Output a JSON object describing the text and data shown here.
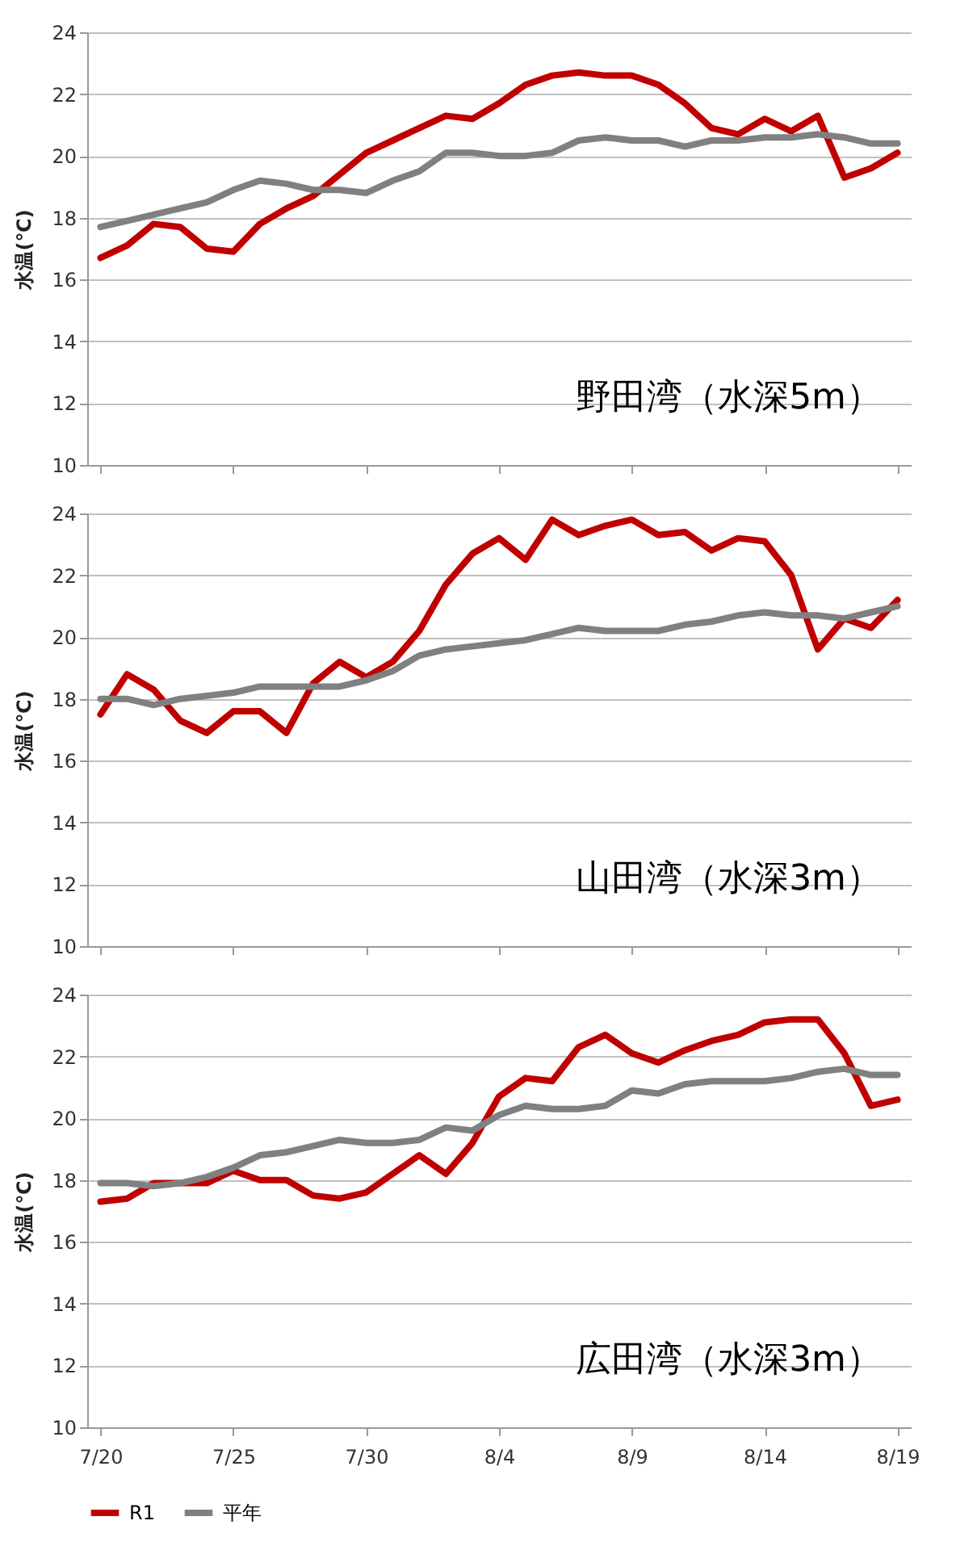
{
  "chart_data": [
    {
      "type": "line",
      "ylabel": "水温(℃)",
      "annotations": [
        "野田湾（水深5m）"
      ],
      "tick_labels": "y",
      "grid": "y",
      "legend": "bottom",
      "categories": [
        null,
        null,
        null,
        null,
        null,
        null,
        null,
        null,
        null,
        null,
        null,
        null,
        null,
        null,
        null,
        null,
        null,
        null,
        null,
        null,
        null,
        null,
        null,
        null,
        null,
        null,
        null,
        null,
        null,
        null,
        null
      ],
      "ylim": [
        10,
        24
      ],
      "yticks": [
        10,
        12,
        14,
        16,
        18,
        20,
        22,
        24
      ],
      "series": [
        {
          "name": "R1",
          "color": "#c00000",
          "values": [
            16.7,
            17.1,
            17.8,
            17.7,
            17.0,
            16.9,
            17.8,
            18.3,
            18.7,
            19.4,
            20.1,
            20.5,
            20.9,
            21.3,
            21.2,
            21.7,
            22.3,
            22.6,
            22.7,
            22.6,
            22.6,
            22.3,
            21.7,
            20.9,
            20.7,
            21.2,
            20.8,
            21.3,
            19.3,
            19.6,
            20.1
          ]
        },
        {
          "name": "平年",
          "color": "#808080",
          "values": [
            17.7,
            17.9,
            18.1,
            18.3,
            18.5,
            18.9,
            19.2,
            19.1,
            18.9,
            18.9,
            18.8,
            19.2,
            19.5,
            20.1,
            20.1,
            20.0,
            20.0,
            20.1,
            20.5,
            20.6,
            20.5,
            20.5,
            20.3,
            20.5,
            20.5,
            20.6,
            20.6,
            20.7,
            20.6,
            20.4,
            20.4
          ]
        }
      ]
    },
    {
      "type": "line",
      "ylabel": "水温(℃)",
      "annotations": [
        "山田湾（水深3m）"
      ],
      "tick_labels": "y",
      "grid": "y",
      "legend": "bottom",
      "categories": [
        null,
        null,
        null,
        null,
        null,
        null,
        null,
        null,
        null,
        null,
        null,
        null,
        null,
        null,
        null,
        null,
        null,
        null,
        null,
        null,
        null,
        null,
        null,
        null,
        null,
        null,
        null,
        null,
        null,
        null,
        null
      ],
      "ylim": [
        10,
        24
      ],
      "yticks": [
        10,
        12,
        14,
        16,
        18,
        20,
        22,
        24
      ],
      "series": [
        {
          "name": "R1",
          "color": "#c00000",
          "values": [
            17.5,
            18.8,
            18.3,
            17.3,
            16.9,
            17.6,
            17.6,
            16.9,
            18.5,
            19.2,
            18.7,
            19.2,
            20.2,
            21.7,
            22.7,
            23.2,
            22.5,
            23.8,
            23.3,
            23.6,
            23.8,
            23.3,
            23.4,
            22.8,
            23.2,
            23.1,
            22.0,
            19.6,
            20.6,
            20.3,
            21.2
          ]
        },
        {
          "name": "平年",
          "color": "#808080",
          "values": [
            18.0,
            18.0,
            17.8,
            18.0,
            18.1,
            18.2,
            18.4,
            18.4,
            18.4,
            18.4,
            18.6,
            18.9,
            19.4,
            19.6,
            19.7,
            19.8,
            19.9,
            20.1,
            20.3,
            20.2,
            20.2,
            20.2,
            20.4,
            20.5,
            20.7,
            20.8,
            20.7,
            20.7,
            20.6,
            20.8,
            21.0
          ]
        }
      ]
    },
    {
      "type": "line",
      "ylabel": "水温(℃)",
      "annotations": [
        "広田湾（水深3m）"
      ],
      "grid": "y",
      "legend": "bottom",
      "categories": [
        "7/20",
        null,
        null,
        null,
        null,
        "7/25",
        null,
        null,
        null,
        null,
        "7/30",
        null,
        null,
        null,
        null,
        "8/4",
        null,
        null,
        null,
        null,
        "8/9",
        null,
        null,
        null,
        null,
        "8/14",
        null,
        null,
        null,
        null,
        "8/19"
      ],
      "ylim": [
        10,
        24
      ],
      "yticks": [
        10,
        12,
        14,
        16,
        18,
        20,
        22,
        24
      ],
      "series": [
        {
          "name": "R1",
          "color": "#c00000",
          "values": [
            17.3,
            17.4,
            17.9,
            17.9,
            17.9,
            18.3,
            18.0,
            18.0,
            17.5,
            17.4,
            17.6,
            18.2,
            18.8,
            18.2,
            19.2,
            20.7,
            21.3,
            21.2,
            22.3,
            22.7,
            22.1,
            21.8,
            22.2,
            22.5,
            22.7,
            23.1,
            23.2,
            23.2,
            22.1,
            20.4,
            20.6
          ]
        },
        {
          "name": "平年",
          "color": "#808080",
          "values": [
            17.9,
            17.9,
            17.8,
            17.9,
            18.1,
            18.4,
            18.8,
            18.9,
            19.1,
            19.3,
            19.2,
            19.2,
            19.3,
            19.7,
            19.6,
            20.1,
            20.4,
            20.3,
            20.3,
            20.4,
            20.9,
            20.8,
            21.1,
            21.2,
            21.2,
            21.2,
            21.3,
            21.5,
            21.6,
            21.4,
            21.4
          ]
        }
      ]
    }
  ]
}
